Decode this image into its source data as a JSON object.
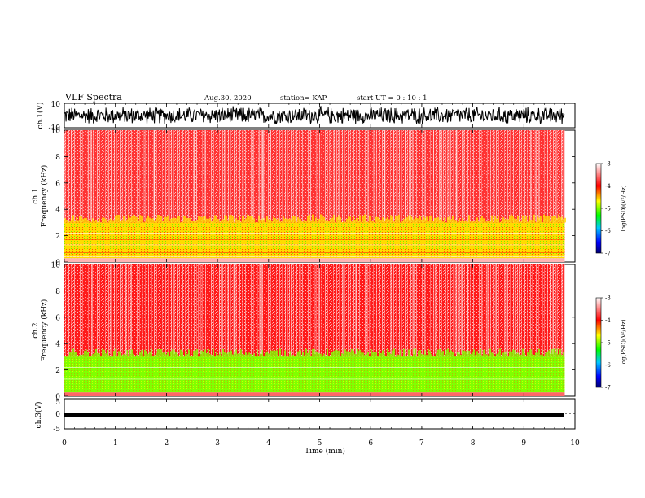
{
  "header": {
    "title": "VLF Spectra",
    "date": "Aug.30, 2020",
    "station": "station= KAP",
    "start": "start UT =  0 : 10 : 1"
  },
  "chart_data": [
    {
      "type": "line",
      "panel": "ch1-waveform",
      "ylabel": "ch.1(V)",
      "ylim": [
        -10,
        10
      ],
      "y_ticks": [
        "10",
        "-10"
      ],
      "xlim": [
        0,
        10
      ],
      "note_series": "dense noise waveform, amplitude ~ -8 to 8 V"
    },
    {
      "type": "heatmap",
      "panel": "ch1-spectrogram",
      "ylabel": "ch.1\nFrequency (kHz)",
      "ylim": [
        0,
        10
      ],
      "y_ticks": [
        "0",
        "2",
        "4",
        "6",
        "8",
        "10"
      ],
      "xlim": [
        0,
        9.8
      ],
      "color_bands": [
        {
          "from_khz": 0,
          "to_khz": 0.3,
          "level": -3.3
        },
        {
          "from_khz": 0.3,
          "to_khz": 3.0,
          "level": -4.6
        },
        {
          "from_khz": 3.0,
          "to_khz": 10,
          "level": -3.8
        }
      ]
    },
    {
      "type": "heatmap",
      "panel": "ch2-spectrogram",
      "ylabel": "ch.2\nFrequency (kHz)",
      "ylim": [
        0,
        10
      ],
      "y_ticks": [
        "0",
        "2",
        "4",
        "6",
        "8",
        "10"
      ],
      "xlim": [
        0,
        9.8
      ],
      "color_bands": [
        {
          "from_khz": 0,
          "to_khz": 0.3,
          "level": -3.6
        },
        {
          "from_khz": 0.3,
          "to_khz": 3.0,
          "level": -5.0
        },
        {
          "from_khz": 3.0,
          "to_khz": 10,
          "level": -3.9
        }
      ]
    },
    {
      "type": "line",
      "panel": "ch3-waveform",
      "ylabel": "ch.3(V)",
      "ylim": [
        -5,
        5
      ],
      "y_ticks": [
        "5",
        "0",
        "-5"
      ],
      "xlim": [
        0,
        10
      ],
      "xlabel": "Time (min)",
      "x_ticks": [
        "0",
        "1",
        "2",
        "3",
        "4",
        "5",
        "6",
        "7",
        "8",
        "9",
        "10"
      ],
      "note_series": "constant thick band around -1 V"
    }
  ],
  "colorbar": {
    "label": "log(PSD)(V²/Hz)",
    "ticks": [
      "-3",
      "-4",
      "-5",
      "-6",
      "-7"
    ],
    "range": [
      -7,
      -3
    ],
    "colors": [
      "#000080",
      "#0000ff",
      "#00c8ff",
      "#00ff00",
      "#ffff00",
      "#ff0000",
      "#ffffff"
    ]
  }
}
